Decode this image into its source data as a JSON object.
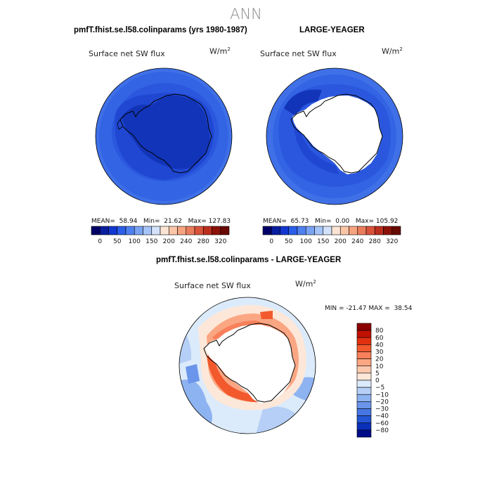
{
  "page_title": "ANN",
  "chart_data": [
    {
      "type": "polar-map",
      "id": "panel-model",
      "title": "pmfT.fhist.se.l58.colinparams (yrs 1980-1987)",
      "field_label": "Surface net SW flux",
      "units": "W/m",
      "units_exponent": "2",
      "stats": {
        "mean_label": "MEAN=",
        "mean": "58.94",
        "min_label": "Min=",
        "min": "21.62",
        "max_label": "Max=",
        "max": "127.83"
      },
      "colorbar": {
        "orientation": "horizontal",
        "levels": [
          "0",
          "25",
          "50",
          "75",
          "100",
          "125",
          "150",
          "175",
          "200",
          "220",
          "240",
          "260",
          "280",
          "300",
          "320"
        ],
        "tick_labels": [
          "0",
          "50",
          "100",
          "150",
          "200",
          "240",
          "280",
          "320"
        ],
        "colors": [
          "#000066",
          "#0a1ea0",
          "#1238d0",
          "#2a5ee8",
          "#4f80ef",
          "#7aa3f3",
          "#a6c4f7",
          "#d3e2fa",
          "#fbe4d4",
          "#fbc6a8",
          "#f7a380",
          "#ec7d5c",
          "#d9533a",
          "#bc2e1d",
          "#8c1209",
          "#670a04"
        ]
      }
    },
    {
      "type": "polar-map",
      "id": "panel-obs",
      "title": "LARGE-YEAGER",
      "field_label": "Surface net SW flux",
      "units": "W/m",
      "units_exponent": "2",
      "stats": {
        "mean_label": "MEAN=",
        "mean": "65.73",
        "min_label": "Min=",
        "min": "0.00",
        "max_label": "Max=",
        "max": "105.92"
      },
      "colorbar": {
        "orientation": "horizontal",
        "levels": [
          "0",
          "25",
          "50",
          "75",
          "100",
          "125",
          "150",
          "175",
          "200",
          "220",
          "240",
          "260",
          "280",
          "300",
          "320"
        ],
        "tick_labels": [
          "0",
          "50",
          "100",
          "150",
          "200",
          "240",
          "280",
          "320"
        ],
        "colors": [
          "#000066",
          "#0a1ea0",
          "#1238d0",
          "#2a5ee8",
          "#4f80ef",
          "#7aa3f3",
          "#a6c4f7",
          "#d3e2fa",
          "#fbe4d4",
          "#fbc6a8",
          "#f7a380",
          "#ec7d5c",
          "#d9533a",
          "#bc2e1d",
          "#8c1209",
          "#670a04"
        ]
      }
    },
    {
      "type": "polar-map",
      "id": "panel-diff",
      "title": "pmfT.fhist.se.l58.colinparams - LARGE-YEAGER",
      "field_label": "Surface net SW flux",
      "units": "W/m",
      "units_exponent": "2",
      "stats": {
        "min_label": "MIN =",
        "min": "-21.47",
        "max_label": "MAX =",
        "max": "38.54"
      },
      "colorbar": {
        "orientation": "vertical",
        "tick_labels": [
          "80",
          "60",
          "40",
          "30",
          "20",
          "10",
          "5",
          "0",
          "−5",
          "−10",
          "−20",
          "−30",
          "−40",
          "−60",
          "−80"
        ],
        "colors": [
          "#8b0000",
          "#c01000",
          "#e03010",
          "#f25a2e",
          "#f7805a",
          "#fba683",
          "#fcc8ad",
          "#fde7d8",
          "#dcebfb",
          "#b5cff6",
          "#8eb3f1",
          "#6a95ea",
          "#4676e3",
          "#2455d5",
          "#0a2fb8",
          "#000c88"
        ]
      }
    }
  ]
}
